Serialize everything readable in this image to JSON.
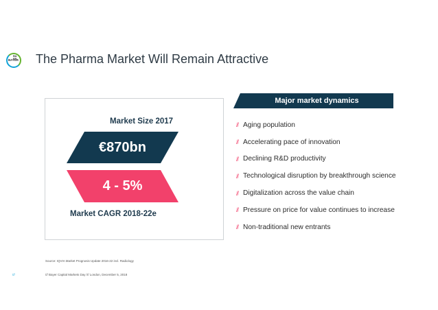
{
  "logo": {
    "text_vertical": "BA ER",
    "text_horizontal": "BAYER"
  },
  "title": "The Pharma Market Will Remain Attractive",
  "market": {
    "size_label": "Market Size 2017",
    "size_value": "€870bn",
    "cagr_value": "4 - 5%",
    "cagr_label": "Market CAGR 2018-22e"
  },
  "dynamics": {
    "header": "Major market dynamics",
    "marker": "//",
    "items": [
      "Aging population",
      "Accelerating pace of innovation",
      "Declining R&D productivity",
      "Technological disruption by breakthrough science",
      "Digitalization across the value chain",
      "Pressure on price for value continues to increase",
      "Non-traditional new entrants"
    ]
  },
  "source": "Source: IQVIA Market Prognosis Update 2016-22 incl. Radiology",
  "page_number": "///",
  "footer": "/// Bayer Capital Markets Day /// London, December 5, 2018",
  "colors": {
    "dark_blue": "#12394f",
    "pink": "#f2416b",
    "bayer_blue": "#10a3d8",
    "bayer_green": "#64b32e"
  }
}
